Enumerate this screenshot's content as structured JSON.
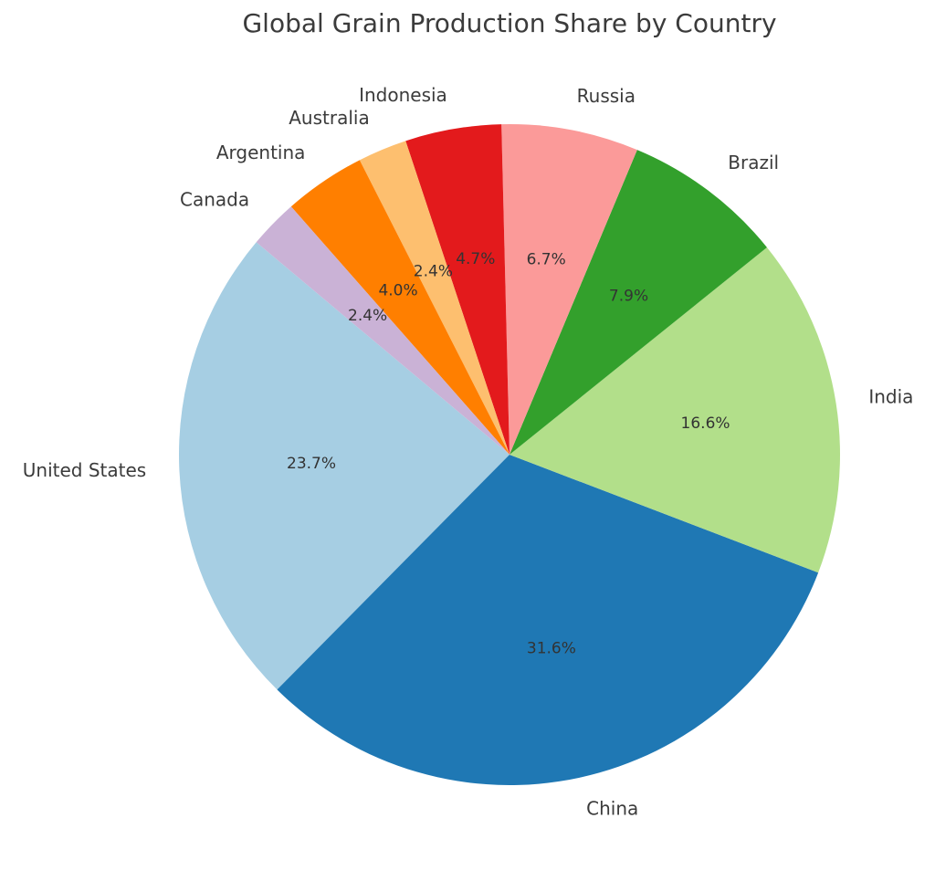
{
  "chart_data": {
    "type": "pie",
    "title": "Global Grain Production Share by Country",
    "start_angle_deg": 140,
    "direction": "counterclockwise",
    "slices": [
      {
        "label": "United States",
        "value": 23.7,
        "pct_label": "23.7%",
        "color": "#a6cee3"
      },
      {
        "label": "China",
        "value": 31.6,
        "pct_label": "31.6%",
        "color": "#1f78b4"
      },
      {
        "label": "India",
        "value": 16.6,
        "pct_label": "16.6%",
        "color": "#b2df8a"
      },
      {
        "label": "Brazil",
        "value": 7.9,
        "pct_label": "7.9%",
        "color": "#33a02c"
      },
      {
        "label": "Russia",
        "value": 6.7,
        "pct_label": "6.7%",
        "color": "#fb9a99"
      },
      {
        "label": "Indonesia",
        "value": 4.7,
        "pct_label": "4.7%",
        "color": "#e31a1c"
      },
      {
        "label": "Australia",
        "value": 2.4,
        "pct_label": "2.4%",
        "color": "#fdbf6f"
      },
      {
        "label": "Argentina",
        "value": 4.0,
        "pct_label": "4.0%",
        "color": "#ff7f00"
      },
      {
        "label": "Canada",
        "value": 2.4,
        "pct_label": "2.4%",
        "color": "#cab2d6"
      }
    ]
  }
}
